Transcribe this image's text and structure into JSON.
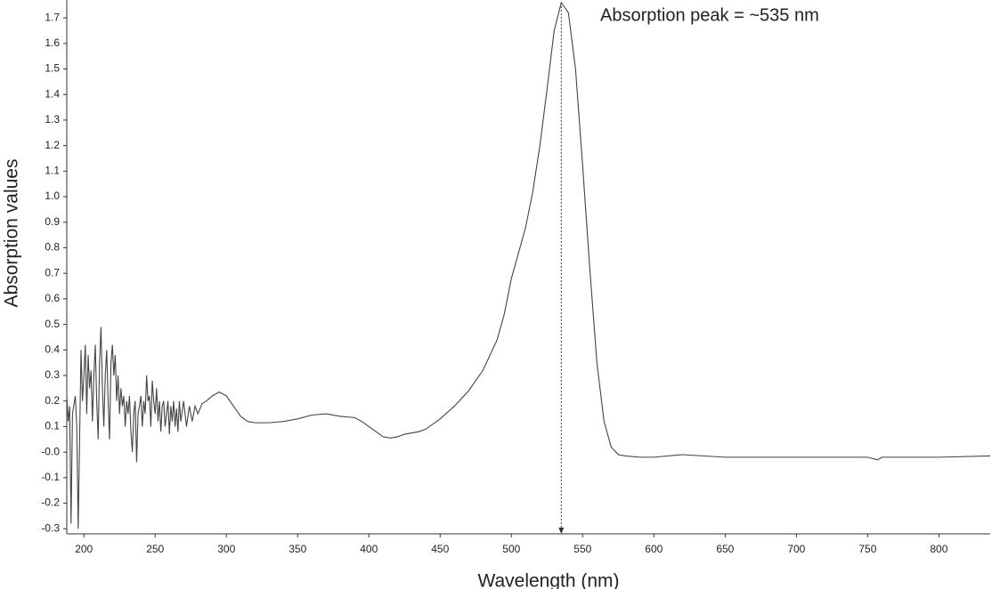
{
  "chart_data": {
    "type": "line",
    "annotation": "Absorption peak = ~535 nm",
    "x_label": "Wavelength (nm)",
    "y_label": "Absorption values",
    "xlim": [
      188,
      836
    ],
    "ylim": [
      -0.32,
      1.77
    ],
    "xticks": [
      200,
      250,
      300,
      350,
      400,
      450,
      500,
      550,
      600,
      650,
      700,
      750,
      800
    ],
    "yticks": [
      -0.3,
      -0.2,
      -0.1,
      {
        "value": 0,
        "label": "-0.0"
      },
      0.1,
      0.2,
      0.3,
      0.4,
      0.5,
      0.6,
      0.7,
      0.8,
      0.9,
      {
        "value": 1,
        "label": "1.0"
      },
      1.1,
      1.2,
      1.3,
      1.4,
      1.5,
      1.6,
      1.7
    ],
    "x": [
      188,
      189,
      190,
      191,
      192,
      194,
      195,
      196,
      197,
      198,
      199,
      200,
      201,
      202,
      203,
      204,
      205,
      206,
      207,
      208,
      209,
      210,
      211,
      212,
      213,
      214,
      215,
      216,
      217,
      218,
      219,
      220,
      221,
      222,
      223,
      224,
      225,
      226,
      227,
      228,
      229,
      230,
      231,
      232,
      233,
      234,
      235,
      236,
      237,
      238,
      239,
      240,
      241,
      242,
      243,
      244,
      245,
      246,
      247,
      248,
      249,
      250,
      251,
      252,
      253,
      254,
      255,
      256,
      257,
      258,
      259,
      260,
      261,
      262,
      263,
      264,
      265,
      266,
      267,
      268,
      270,
      272,
      274,
      276,
      278,
      280,
      283,
      286,
      290,
      295,
      300,
      305,
      310,
      315,
      320,
      330,
      340,
      350,
      360,
      370,
      380,
      390,
      395,
      400,
      405,
      410,
      415,
      420,
      425,
      435,
      440,
      450,
      460,
      470,
      480,
      490,
      495,
      500,
      505,
      510,
      515,
      520,
      525,
      530,
      535,
      540,
      545,
      550,
      555,
      560,
      565,
      570,
      575,
      580,
      590,
      600,
      620,
      650,
      700,
      750,
      757,
      760,
      800,
      836
    ],
    "series": [
      {
        "color": "#444444",
        "values": [
          0.22,
          0.12,
          0.18,
          -0.28,
          0.15,
          0.22,
          0.1,
          -0.3,
          0.05,
          0.4,
          0.2,
          0.3,
          0.42,
          0.15,
          0.38,
          0.25,
          0.32,
          0.12,
          0.3,
          0.42,
          0.2,
          0.05,
          0.35,
          0.49,
          0.25,
          0.1,
          0.3,
          0.4,
          0.2,
          0.05,
          0.35,
          0.42,
          0.3,
          0.38,
          0.2,
          0.3,
          0.15,
          0.25,
          0.18,
          0.22,
          0.1,
          0.2,
          0.15,
          0.22,
          0.08,
          0.0,
          0.15,
          0.2,
          -0.04,
          0.15,
          0.18,
          0.22,
          0.1,
          0.2,
          0.15,
          0.3,
          0.2,
          0.22,
          0.1,
          0.28,
          0.2,
          0.15,
          0.25,
          0.12,
          0.2,
          0.08,
          0.18,
          0.2,
          0.1,
          0.15,
          0.2,
          0.07,
          0.18,
          0.12,
          0.2,
          0.1,
          0.17,
          0.08,
          0.2,
          0.12,
          0.2,
          0.1,
          0.18,
          0.12,
          0.18,
          0.15,
          0.19,
          0.2,
          0.22,
          0.235,
          0.22,
          0.18,
          0.14,
          0.12,
          0.115,
          0.115,
          0.12,
          0.13,
          0.145,
          0.15,
          0.14,
          0.135,
          0.12,
          0.1,
          0.08,
          0.06,
          0.055,
          0.06,
          0.07,
          0.08,
          0.09,
          0.13,
          0.18,
          0.24,
          0.32,
          0.44,
          0.54,
          0.68,
          0.78,
          0.88,
          1.02,
          1.2,
          1.42,
          1.65,
          1.76,
          1.72,
          1.5,
          1.12,
          0.72,
          0.35,
          0.12,
          0.02,
          -0.01,
          -0.015,
          -0.02,
          -0.02,
          -0.01,
          -0.02,
          -0.02,
          -0.02,
          -0.03,
          -0.02,
          -0.02,
          -0.015
        ]
      }
    ]
  }
}
